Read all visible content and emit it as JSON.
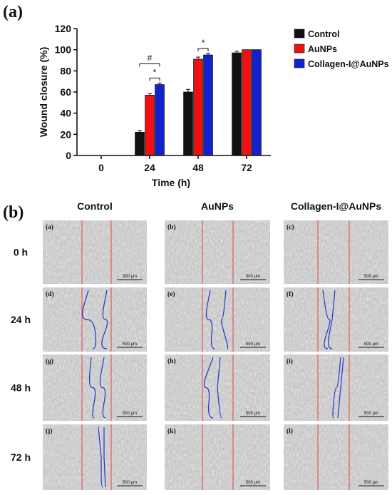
{
  "panel_a": {
    "label": "(a)"
  },
  "panel_b": {
    "label": "(b)"
  },
  "chart_data": {
    "type": "bar",
    "categories": [
      "0",
      "24",
      "48",
      "72"
    ],
    "series": [
      {
        "name": "Control",
        "color": "#111111",
        "values": [
          0,
          22,
          60,
          97
        ],
        "errors": [
          0,
          1.5,
          2.5,
          1.5
        ]
      },
      {
        "name": "AuNPs",
        "color": "#ee1111",
        "values": [
          0,
          57,
          91,
          100
        ],
        "errors": [
          0,
          1.5,
          2,
          0
        ]
      },
      {
        "name": "Collagen-I@AuNPs",
        "color": "#1122cc",
        "values": [
          0,
          67,
          95,
          100
        ],
        "errors": [
          0,
          1.5,
          1.5,
          0
        ]
      }
    ],
    "xlabel": "Time (h)",
    "ylabel": "Wound closure (%)",
    "ylim": [
      0,
      120
    ],
    "yticks": [
      "0",
      "20",
      "40",
      "60",
      "80",
      "100",
      "120"
    ],
    "legend_position": "top-right",
    "annotations": [
      {
        "text": "#",
        "category": "24",
        "between": [
          "Control",
          "Collagen-I@AuNPs"
        ]
      },
      {
        "text": "*",
        "category": "24",
        "between": [
          "AuNPs",
          "Collagen-I@AuNPs"
        ]
      },
      {
        "text": "*",
        "category": "48",
        "between": [
          "AuNPs",
          "Collagen-I@AuNPs"
        ]
      }
    ]
  },
  "micrographs": {
    "columns": [
      "Control",
      "AuNPs",
      "Collagen-I@AuNPs"
    ],
    "rows": [
      "0 h",
      "24 h",
      "48 h",
      "72 h"
    ],
    "panel_labels": [
      "(a)",
      "(b)",
      "(c)",
      "(d)",
      "(e)",
      "(f)",
      "(g)",
      "(h)",
      "(i)",
      "(j)",
      "(k)",
      "(l)"
    ],
    "scale_bar_text": "500 μm",
    "boundary_line_color": "#ee3333",
    "wound_edge_color": "#2233cc"
  }
}
